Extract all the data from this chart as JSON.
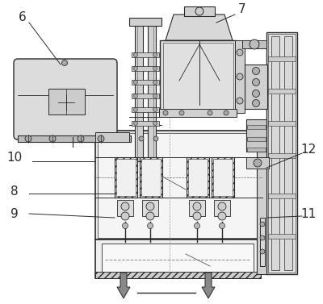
{
  "bg_color": "#ffffff",
  "dark": "#2a2a2a",
  "mid": "#555555",
  "light": "#aaaaaa",
  "fill_light": "#e8e8e8",
  "fill_mid": "#d0d0d0",
  "fill_dark": "#b0b0b0",
  "hatch_fill": "#888888"
}
